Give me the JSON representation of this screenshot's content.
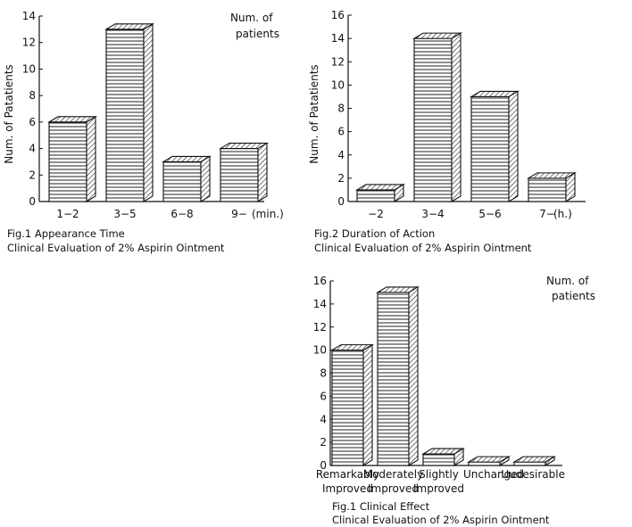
{
  "chart_data": [
    {
      "type": "bar",
      "title": "Fig.1 Appearance Time",
      "subtitle": "Clinical Evaluation of 2% Aspirin Ointment",
      "categories": [
        "1−2",
        "3−5",
        "6−8",
        "9−"
      ],
      "values": [
        6,
        13,
        3,
        4
      ],
      "xlabel": "(min.)",
      "ylabel": "Num. of Patatients",
      "note": [
        "Num. of",
        "patients"
      ],
      "ylim": [
        0,
        14
      ],
      "yticks": [
        0,
        2,
        4,
        6,
        8,
        10,
        12,
        14
      ]
    },
    {
      "type": "bar",
      "title": "Fig.2 Duration of Action",
      "subtitle": "Clinical Evaluation of 2% Aspirin Ointment",
      "categories": [
        "−2",
        "3−4",
        "5−6",
        "7−"
      ],
      "values": [
        1,
        14,
        9,
        2
      ],
      "xlabel": "(h.)",
      "ylabel": "Num. of Patatients",
      "ylim": [
        0,
        16
      ],
      "yticks": [
        0,
        2,
        4,
        6,
        8,
        10,
        12,
        14,
        16
      ]
    },
    {
      "type": "bar",
      "title": "Fig.1 Clinical Effect",
      "subtitle": "Clinical Evaluation of 2% Aspirin Ointment",
      "categories": [
        [
          "Remarkably",
          "Improved"
        ],
        [
          "Moderately",
          "Improved"
        ],
        [
          "Slightly",
          "Improved"
        ],
        [
          "Unchanged"
        ],
        [
          "Uudesirable"
        ]
      ],
      "values": [
        10,
        15,
        1,
        0.3,
        0.3
      ],
      "xlabel": "",
      "ylabel": "",
      "note": [
        "Num. of",
        "patients"
      ],
      "ylim": [
        0,
        16
      ],
      "yticks": [
        0,
        2,
        4,
        6,
        8,
        10,
        12,
        14,
        16
      ]
    }
  ]
}
